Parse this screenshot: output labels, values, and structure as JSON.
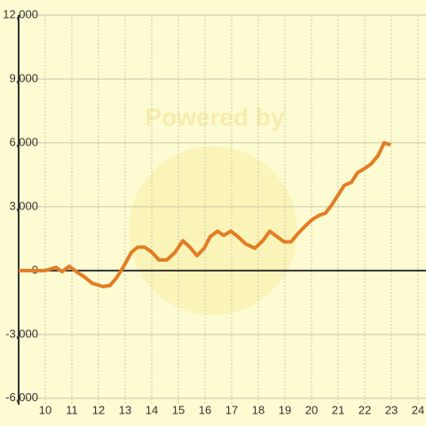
{
  "chart_data": {
    "type": "line",
    "watermark": "Powered by",
    "x": [
      9,
      10,
      10.4,
      10.63,
      10.9,
      11.17,
      11.47,
      11.77,
      12.17,
      12.43,
      12.67,
      12.97,
      13.23,
      13.47,
      13.73,
      13.97,
      14.27,
      14.57,
      14.87,
      15.17,
      15.43,
      15.7,
      15.97,
      16.2,
      16.47,
      16.7,
      16.97,
      17.23,
      17.53,
      17.87,
      18.17,
      18.43,
      18.7,
      18.97,
      19.23,
      19.5,
      19.77,
      20.03,
      20.3,
      20.53,
      20.77,
      21,
      21.23,
      21.5,
      21.73,
      22,
      22.23,
      22.5,
      22.73,
      22.97
    ],
    "series": [
      {
        "color": "#e27d25",
        "values": [
          0,
          0,
          150,
          -50,
          200,
          -50,
          -300,
          -600,
          -750,
          -700,
          -350,
          250,
          850,
          1100,
          1100,
          900,
          500,
          500,
          850,
          1400,
          1100,
          700,
          1050,
          1600,
          1850,
          1650,
          1850,
          1600,
          1250,
          1050,
          1400,
          1850,
          1600,
          1350,
          1350,
          1750,
          2100,
          2400,
          2600,
          2700,
          3100,
          3550,
          4000,
          4150,
          4600,
          4800,
          5000,
          5400,
          6000,
          5900
        ]
      }
    ],
    "xlim": [
      9,
      24.3
    ],
    "xticks": [
      10,
      11,
      12,
      13,
      14,
      15,
      16,
      17,
      18,
      19,
      20,
      21,
      22,
      23,
      24
    ],
    "ylim": [
      -6300,
      12000
    ],
    "yticks": [
      {
        "value": -6000,
        "label": "-6,000"
      },
      {
        "value": -3000,
        "label": "-3,000"
      },
      0,
      {
        "value": 3000,
        "label": "3,000"
      },
      {
        "value": 6000,
        "label": "6,000"
      },
      {
        "value": 9000,
        "label": "9,000"
      },
      {
        "value": 12000,
        "label": "12,000"
      }
    ],
    "grid": true
  }
}
